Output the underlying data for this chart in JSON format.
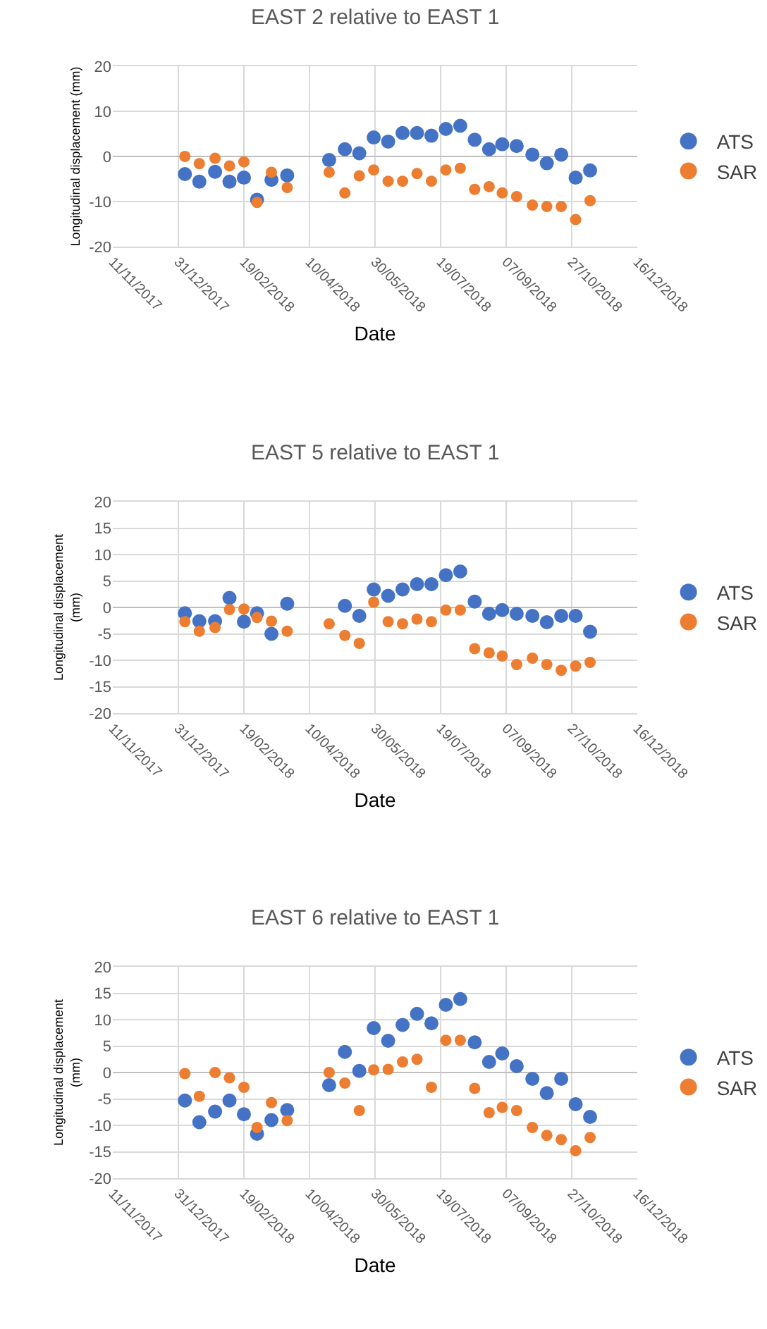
{
  "chart_data": [
    {
      "type": "scatter",
      "title": "EAST 2 relative to EAST 1",
      "xlabel": "Date",
      "ylabel": "Longitudinal displacement (mm)",
      "xlim": [
        "2017-11-11",
        "2018-12-16"
      ],
      "xticks": [
        {
          "value": "2017-11-11",
          "label": "11/11/2017"
        },
        {
          "value": "2017-12-31",
          "label": "31/12/2017"
        },
        {
          "value": "2018-02-19",
          "label": "19/02/2018"
        },
        {
          "value": "2018-04-10",
          "label": "10/04/2018"
        },
        {
          "value": "2018-05-30",
          "label": "30/05/2018"
        },
        {
          "value": "2018-07-19",
          "label": "19/07/2018"
        },
        {
          "value": "2018-09-07",
          "label": "07/09/2018"
        },
        {
          "value": "2018-10-27",
          "label": "27/10/2018"
        },
        {
          "value": "2018-12-16",
          "label": "16/12/2018"
        }
      ],
      "ylim": [
        -20,
        20
      ],
      "yticks": [
        -20,
        -10,
        0,
        10,
        20
      ],
      "grid": true,
      "legend": "right",
      "marker": "circle",
      "x": [
        "2018-01-05",
        "2018-01-16",
        "2018-01-28",
        "2018-02-08",
        "2018-02-19",
        "2018-03-01",
        "2018-03-12",
        "2018-03-24",
        "2018-04-25",
        "2018-05-07",
        "2018-05-18",
        "2018-05-29",
        "2018-06-09",
        "2018-06-20",
        "2018-07-01",
        "2018-07-12",
        "2018-07-23",
        "2018-08-03",
        "2018-08-14",
        "2018-08-25",
        "2018-09-04",
        "2018-09-15",
        "2018-09-27",
        "2018-10-08",
        "2018-10-19",
        "2018-10-30",
        "2018-11-10"
      ],
      "series": [
        {
          "name": "ATS",
          "color": "#4472c4",
          "values": [
            -3.9,
            -5.6,
            -3.4,
            -5.6,
            -4.7,
            -9.6,
            -5.2,
            -4.2,
            -0.8,
            1.6,
            0.7,
            4.2,
            3.3,
            5.2,
            5.2,
            4.6,
            6.1,
            6.8,
            3.7,
            1.6,
            2.7,
            2.3,
            0.4,
            -1.5,
            0.4,
            -4.7,
            -3.1
          ]
        },
        {
          "name": "SAR",
          "color": "#ed7d31",
          "values": [
            0,
            -1.6,
            -0.4,
            -2.1,
            -1.2,
            -10.2,
            -3.5,
            -6.9,
            -3.5,
            -8.1,
            -4.3,
            -3.0,
            -5.5,
            -5.5,
            -3.8,
            -5.5,
            -3.0,
            -2.6,
            -7.3,
            -6.7,
            -8.1,
            -8.9,
            -10.8,
            -11.1,
            -11.1,
            -14.0,
            -9.8
          ]
        }
      ]
    },
    {
      "type": "scatter",
      "title": "EAST 5 relative to EAST 1",
      "xlabel": "Date",
      "ylabel": "Longitudinal displacement\n(mm)",
      "xlim": [
        "2017-11-11",
        "2018-12-16"
      ],
      "xticks": [
        {
          "value": "2017-11-11",
          "label": "11/11/2017"
        },
        {
          "value": "2017-12-31",
          "label": "31/12/2017"
        },
        {
          "value": "2018-02-19",
          "label": "19/02/2018"
        },
        {
          "value": "2018-04-10",
          "label": "10/04/2018"
        },
        {
          "value": "2018-05-30",
          "label": "30/05/2018"
        },
        {
          "value": "2018-07-19",
          "label": "19/07/2018"
        },
        {
          "value": "2018-09-07",
          "label": "07/09/2018"
        },
        {
          "value": "2018-10-27",
          "label": "27/10/2018"
        },
        {
          "value": "2018-12-16",
          "label": "16/12/2018"
        }
      ],
      "ylim": [
        -20,
        20
      ],
      "yticks": [
        -20,
        -15,
        -10,
        -5,
        0,
        5,
        10,
        15,
        20
      ],
      "grid": true,
      "legend": "right",
      "marker": "circle",
      "series": [
        {
          "name": "ATS",
          "color": "#4472c4",
          "x": [
            "2018-01-05",
            "2018-01-16",
            "2018-01-28",
            "2018-02-08",
            "2018-02-19",
            "2018-03-01",
            "2018-03-12",
            "2018-03-24",
            "2018-05-07",
            "2018-05-18",
            "2018-05-29",
            "2018-06-09",
            "2018-06-20",
            "2018-07-01",
            "2018-07-12",
            "2018-07-23",
            "2018-08-03",
            "2018-08-14",
            "2018-08-25",
            "2018-09-04",
            "2018-09-15",
            "2018-09-27",
            "2018-10-08",
            "2018-10-19",
            "2018-10-30",
            "2018-11-10"
          ],
          "values": [
            -1.1,
            -2.6,
            -2.6,
            1.8,
            -2.7,
            -1.1,
            -5.0,
            0.7,
            0.3,
            -1.6,
            3.4,
            2.2,
            3.4,
            4.4,
            4.4,
            6.1,
            6.8,
            1.1,
            -1.2,
            -0.5,
            -1.2,
            -1.6,
            -2.8,
            -1.6,
            -1.6,
            -4.6
          ]
        },
        {
          "name": "SAR",
          "color": "#ed7d31",
          "x": [
            "2018-01-05",
            "2018-01-16",
            "2018-01-28",
            "2018-02-08",
            "2018-02-19",
            "2018-03-01",
            "2018-03-12",
            "2018-03-24",
            "2018-04-25",
            "2018-05-07",
            "2018-05-18",
            "2018-05-29",
            "2018-06-09",
            "2018-06-20",
            "2018-07-01",
            "2018-07-12",
            "2018-07-23",
            "2018-08-03",
            "2018-08-14",
            "2018-08-25",
            "2018-09-04",
            "2018-09-15",
            "2018-09-27",
            "2018-10-08",
            "2018-10-19",
            "2018-10-30",
            "2018-11-10"
          ],
          "values": [
            -2.7,
            -4.5,
            -3.8,
            -0.4,
            -0.3,
            -1.9,
            -2.6,
            -4.5,
            -3.1,
            -5.3,
            -6.8,
            1.0,
            -2.7,
            -3.1,
            -2.2,
            -2.7,
            -0.5,
            -0.5,
            -7.8,
            -8.6,
            -9.2,
            -10.8,
            -9.6,
            -10.8,
            -11.9,
            -11.1,
            -10.4
          ]
        }
      ]
    },
    {
      "type": "scatter",
      "title": "EAST 6 relative to EAST 1",
      "xlabel": "Date",
      "ylabel": "Longitudinal displacement\n(mm)",
      "xlim": [
        "2017-11-11",
        "2018-12-16"
      ],
      "xticks": [
        {
          "value": "2017-11-11",
          "label": "11/11/2017"
        },
        {
          "value": "2017-12-31",
          "label": "31/12/2017"
        },
        {
          "value": "2018-02-19",
          "label": "19/02/2018"
        },
        {
          "value": "2018-04-10",
          "label": "10/04/2018"
        },
        {
          "value": "2018-05-30",
          "label": "30/05/2018"
        },
        {
          "value": "2018-07-19",
          "label": "19/07/2018"
        },
        {
          "value": "2018-09-07",
          "label": "07/09/2018"
        },
        {
          "value": "2018-10-27",
          "label": "27/10/2018"
        },
        {
          "value": "2018-12-16",
          "label": "16/12/2018"
        }
      ],
      "ylim": [
        -20,
        20
      ],
      "yticks": [
        -20,
        -15,
        -10,
        -5,
        0,
        5,
        10,
        15,
        20
      ],
      "grid": true,
      "legend": "right",
      "marker": "circle",
      "x": [
        "2018-01-05",
        "2018-01-16",
        "2018-01-28",
        "2018-02-08",
        "2018-02-19",
        "2018-03-01",
        "2018-03-12",
        "2018-03-24",
        "2018-04-25",
        "2018-05-07",
        "2018-05-18",
        "2018-05-29",
        "2018-06-09",
        "2018-06-20",
        "2018-07-01",
        "2018-07-12",
        "2018-07-23",
        "2018-08-03",
        "2018-08-14",
        "2018-08-25",
        "2018-09-04",
        "2018-09-15",
        "2018-09-27",
        "2018-10-08",
        "2018-10-19",
        "2018-10-30",
        "2018-11-10"
      ],
      "series": [
        {
          "name": "ATS",
          "color": "#4472c4",
          "values": [
            -5.3,
            -9.4,
            -7.4,
            -5.3,
            -7.9,
            -11.6,
            -9.0,
            -7.1,
            -2.4,
            3.9,
            0.3,
            8.4,
            6.0,
            9.0,
            11.1,
            9.3,
            12.8,
            13.9,
            5.7,
            2.0,
            3.6,
            1.2,
            -1.2,
            -3.9,
            -1.2,
            -6.0,
            -8.4
          ]
        },
        {
          "name": "SAR",
          "color": "#ed7d31",
          "values": [
            -0.2,
            -4.5,
            0,
            -1.0,
            -2.8,
            -10.4,
            -5.7,
            -9.1,
            0,
            -2.0,
            -7.2,
            0.5,
            0.6,
            2.0,
            2.5,
            -2.8,
            6.1,
            6.1,
            -3.0,
            -7.6,
            -6.6,
            -7.2,
            -10.4,
            -11.9,
            -12.7,
            -14.8,
            -12.3
          ]
        }
      ]
    }
  ]
}
